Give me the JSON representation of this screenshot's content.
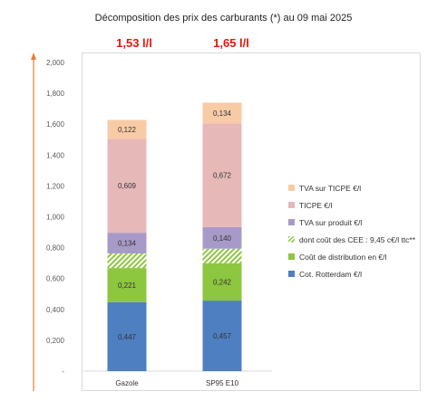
{
  "chart_data": {
    "type": "bar",
    "stacked": true,
    "title": "Décomposition des prix des carburants (*) au 09 mai 2025",
    "categories": [
      "Gazole",
      "SP95 E10"
    ],
    "totals": [
      "1,53 l/l",
      "1,65 l/l"
    ],
    "yticks": [
      "-",
      "0,200",
      "0,400",
      "0,600",
      "0,800",
      "1,000",
      "1,200",
      "1,400",
      "1,600",
      "1,800",
      "2,000"
    ],
    "ylim": [
      0,
      2.0
    ],
    "series": [
      {
        "name": "Cot. Rotterdam €/l",
        "values": [
          0.447,
          0.457
        ],
        "labels": [
          "0,447",
          "0,457"
        ],
        "color": "#4e7fc0"
      },
      {
        "name": "Coût de distribution en €/l",
        "values": [
          0.221,
          0.242
        ],
        "labels": [
          "0,221",
          "0,242"
        ],
        "color": "#8dc63f"
      },
      {
        "name": "dont coût des CEE : 9,45 c€/l ttc**",
        "values": [
          0.0945,
          0.0945
        ],
        "labels": [
          "",
          ""
        ],
        "color": "#8dc63f",
        "pattern": "hatch"
      },
      {
        "name": "TVA sur produit €/l",
        "values": [
          0.134,
          0.14
        ],
        "labels": [
          "0,134",
          "0,140"
        ],
        "color": "#a89ac8"
      },
      {
        "name": "TICPE €/l",
        "values": [
          0.609,
          0.672
        ],
        "labels": [
          "0,609",
          "0,672"
        ],
        "color": "#e6b8b8"
      },
      {
        "name": "TVA sur TICPE €/l",
        "values": [
          0.122,
          0.134
        ],
        "labels": [
          "0,122",
          "0,134"
        ],
        "color": "#f8cba7"
      }
    ],
    "legend_position": "right"
  }
}
